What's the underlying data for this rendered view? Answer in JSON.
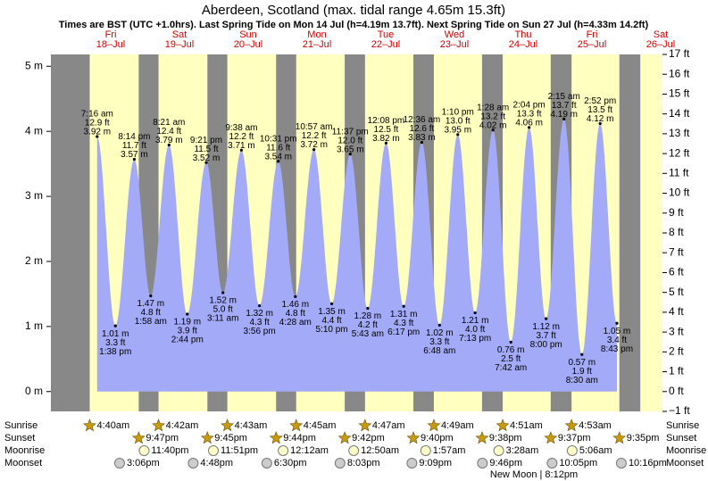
{
  "chart_data": {
    "type": "line",
    "title": "Aberdeen, Scotland (max. tidal range 4.65m 15.3ft)",
    "subtitle": "Times are BST (UTC +1.0hrs). Last Spring Tide on Mon 14 Jul (h=4.19m 13.7ft). Next Spring Tide on Sun 27 Jul (h=4.33m 14.2ft)",
    "days": [
      {
        "weekday": "Fri",
        "date": "18–Jul"
      },
      {
        "weekday": "Sat",
        "date": "19–Jul"
      },
      {
        "weekday": "Sun",
        "date": "20–Jul"
      },
      {
        "weekday": "Mon",
        "date": "21–Jul"
      },
      {
        "weekday": "Tue",
        "date": "22–Jul"
      },
      {
        "weekday": "Wed",
        "date": "23–Jul"
      },
      {
        "weekday": "Thu",
        "date": "24–Jul"
      },
      {
        "weekday": "Fri",
        "date": "25–Jul"
      },
      {
        "weekday": "Sat",
        "date": "26–Jul"
      }
    ],
    "x": [
      "7:16 am",
      "1:38 pm",
      "8:14 pm",
      "1:58 am",
      "8:21 am",
      "2:44 pm",
      "9:21 pm",
      "3:11 am",
      "9:38 am",
      "3:56 pm",
      "10:31 pm",
      "4:28 am",
      "10:57 am",
      "5:10 pm",
      "11:37 pm",
      "5:43 am",
      "12:08 pm",
      "6:17 pm",
      "12:36 am",
      "6:48 am",
      "1:10 pm",
      "7:13 pm",
      "1:28 am",
      "7:42 am",
      "2:04 pm",
      "8:00 pm",
      "2:15 am",
      "8:30 am",
      "2:52 pm",
      "8:43 pm"
    ],
    "values": [
      3.92,
      1.01,
      3.57,
      1.47,
      3.79,
      1.19,
      3.52,
      1.52,
      3.71,
      1.32,
      3.54,
      1.46,
      3.72,
      1.35,
      3.65,
      1.28,
      3.82,
      1.31,
      3.83,
      1.02,
      3.95,
      1.21,
      4.02,
      0.76,
      4.06,
      1.12,
      4.19,
      0.57,
      4.12,
      1.05
    ],
    "value_labels": [
      "3.92 m",
      "1.01 m",
      "3.57 m",
      "1.47 m",
      "3.79 m",
      "1.19 m",
      "3.52 m",
      "1.52 m",
      "3.71 m",
      "1.32 m",
      "3.54 m",
      "1.46 m",
      "3.72 m",
      "1.35 m",
      "3.65 m",
      "1.28 m",
      "3.82 m",
      "1.31 m",
      "3.83 m",
      "1.02 m",
      "3.95 m",
      "1.21 m",
      "4.02 m",
      "0.76 m",
      "4.06 m",
      "1.12 m",
      "4.19 m",
      "0.57 m",
      "4.12 m",
      "1.05 m"
    ],
    "ft_labels": [
      "12.9 ft",
      "3.3 ft",
      "11.7 ft",
      "4.8 ft",
      "12.4 ft",
      "3.9 ft",
      "11.5 ft",
      "5.0 ft",
      "12.2 ft",
      "4.3 ft",
      "11.6 ft",
      "4.8 ft",
      "12.2 ft",
      "4.4 ft",
      "12.0 ft",
      "4.2 ft",
      "12.5 ft",
      "4.3 ft",
      "12.6 ft",
      "3.3 ft",
      "13.0 ft",
      "4.0 ft",
      "13.2 ft",
      "2.5 ft",
      "13.3 ft",
      "3.7 ft",
      "13.7 ft",
      "1.9 ft",
      "13.5 ft",
      "3.4 ft"
    ],
    "color": "#a3aaf8",
    "day_color": "#ffffc0",
    "night_color": "#888888",
    "ylim": [
      -0.305,
      5.182
    ],
    "yticks": [
      {
        "value": 0,
        "label": "0 m"
      },
      {
        "value": 1,
        "label": "1 m"
      },
      {
        "value": 2,
        "label": "2 m"
      },
      {
        "value": 3,
        "label": "3 m"
      },
      {
        "value": 4,
        "label": "4 m"
      },
      {
        "value": 5,
        "label": "5 m"
      }
    ],
    "y2lim": [
      -1,
      17
    ],
    "y2ticks": [
      {
        "value": -1,
        "label": "−1 ft"
      },
      {
        "value": 0,
        "label": "0 ft"
      },
      {
        "value": 1,
        "label": "1 ft"
      },
      {
        "value": 2,
        "label": "2 ft"
      },
      {
        "value": 3,
        "label": "3 ft"
      },
      {
        "value": 4,
        "label": "4 ft"
      },
      {
        "value": 5,
        "label": "5 ft"
      },
      {
        "value": 6,
        "label": "6 ft"
      },
      {
        "value": 7,
        "label": "7 ft"
      },
      {
        "value": 8,
        "label": "8 ft"
      },
      {
        "value": 9,
        "label": "9 ft"
      },
      {
        "value": 10,
        "label": "10 ft"
      },
      {
        "value": 11,
        "label": "11 ft"
      },
      {
        "value": 12,
        "label": "12 ft"
      },
      {
        "value": 13,
        "label": "13 ft"
      },
      {
        "value": 14,
        "label": "14 ft"
      },
      {
        "value": 15,
        "label": "15 ft"
      },
      {
        "value": 16,
        "label": "16 ft"
      },
      {
        "value": 17,
        "label": "17 ft"
      }
    ],
    "rows": {
      "sunrise": {
        "label": "Sunrise",
        "times": [
          "4:40am",
          "4:42am",
          "4:43am",
          "4:45am",
          "4:47am",
          "4:49am",
          "4:51am",
          "4:53am"
        ]
      },
      "sunset": {
        "label": "Sunset",
        "times": [
          "9:47pm",
          "9:45pm",
          "9:44pm",
          "9:42pm",
          "9:40pm",
          "9:38pm",
          "9:37pm",
          "9:35pm"
        ]
      },
      "moonrise": {
        "label": "Moonrise",
        "times": [
          "11:40pm",
          "11:51pm",
          "12:12am",
          "12:50am",
          "1:57am",
          "3:28am",
          "5:06am"
        ]
      },
      "moonset": {
        "label": "Moonset",
        "times": [
          "3:06pm",
          "4:48pm",
          "6:30pm",
          "8:03pm",
          "9:09pm",
          "9:46pm",
          "10:05pm",
          "10:16pm"
        ]
      }
    },
    "annotation": "New Moon | 8:12pm"
  }
}
